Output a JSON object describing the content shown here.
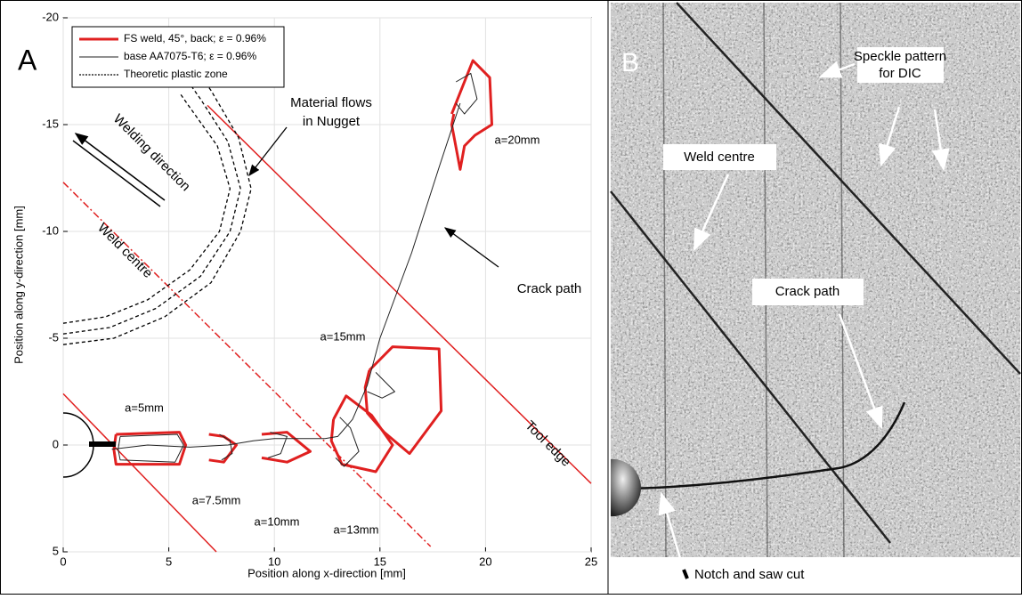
{
  "chart_data": {
    "type": "line",
    "panel_label": "A",
    "xlabel": "Position along x-direction [mm]",
    "ylabel": "Position along y-direction [mm]",
    "xlim": [
      0,
      25
    ],
    "ylim": [
      -20,
      5
    ],
    "y_inverted": true,
    "xticks": [
      0,
      5,
      10,
      15,
      20,
      25
    ],
    "yticks": [
      -20,
      -15,
      -10,
      -5,
      0,
      5
    ],
    "grid": true,
    "legend": "upper left",
    "series": [
      {
        "name": "FS weld, 45°, back; ε = 0.96%",
        "color": "#e02020",
        "width": 3,
        "x": [
          2.5,
          5.5,
          5.8,
          5.5,
          2.5,
          2.4,
          2.5,
          null,
          6.9,
          7.6,
          8.2,
          7.6,
          6.9,
          null,
          9.4,
          10.6,
          11.7,
          10.6,
          9.4,
          null,
          12.8,
          13.4,
          14.6,
          15.6,
          14.8,
          13.2,
          12.7,
          12.8,
          null,
          14.5,
          15.6,
          17.8,
          17.9,
          16.4,
          15.2,
          14.4,
          14.3,
          14.5,
          null,
          18.4,
          19.4,
          20.2,
          20.3,
          19.5,
          19.0,
          18.8,
          18.4,
          18.5
        ],
        "y": [
          -0.5,
          -0.6,
          0.0,
          0.9,
          0.9,
          0.2,
          -0.5,
          null,
          -0.5,
          -0.4,
          0.0,
          0.8,
          0.7,
          null,
          -0.5,
          -0.6,
          0.3,
          0.8,
          0.6,
          null,
          -1.2,
          -2.3,
          -1.4,
          0.0,
          1.25,
          0.9,
          -0.2,
          -1.2,
          null,
          -3.5,
          -4.6,
          -4.5,
          -1.6,
          0.4,
          -0.6,
          -1.5,
          -2.7,
          -3.5,
          null,
          -15.5,
          -18.0,
          -17.2,
          -15.0,
          -14.5,
          -14.0,
          -12.9,
          -15.0,
          -15.5
        ]
      },
      {
        "name": "base AA7075-T6; ε = 0.96%",
        "color": "#222222",
        "width": 1,
        "x": [
          2.7,
          5.4,
          5.7,
          5.3,
          2.7,
          2.6,
          2.7,
          null,
          7.4,
          7.9,
          8.0,
          7.5,
          null,
          9.8,
          10.6,
          10.3,
          9.7,
          null,
          13.1,
          13.6,
          14.0,
          13.3,
          12.9,
          null,
          14.8,
          15.7,
          15.1,
          14.4,
          null,
          18.6,
          19.3,
          19.6,
          19.0,
          18.6,
          null,
          2.3,
          4.0,
          6.0,
          7.8,
          9.0,
          10.0,
          11.0,
          12.4,
          13.0,
          13.7,
          14.4,
          15.0,
          16.5,
          17.8,
          18.8
        ],
        "y": [
          -0.4,
          -0.5,
          0.0,
          0.8,
          0.7,
          0.2,
          -0.4,
          null,
          -0.5,
          -0.2,
          0.4,
          0.7,
          null,
          -0.6,
          -0.4,
          0.4,
          0.6,
          null,
          -1.3,
          -0.8,
          0.3,
          1.0,
          0.6,
          null,
          -3.4,
          -2.5,
          -2.2,
          -2.5,
          null,
          -17.0,
          -17.4,
          -16.2,
          -15.5,
          -16.0,
          null,
          0.2,
          0.0,
          0.1,
          0.0,
          -0.2,
          -0.3,
          -0.3,
          -0.3,
          -0.4,
          -1.2,
          -2.8,
          -5.0,
          -9.0,
          -13.0,
          -16.0
        ]
      },
      {
        "name": "Theoretic plastic zone",
        "color": "#000000",
        "width": 1.3,
        "dash": "4 3",
        "x": [
          0,
          2,
          4,
          6,
          7.4,
          7.9,
          7.3,
          6,
          5.5,
          null,
          0,
          2.2,
          4.4,
          6.5,
          7.9,
          8.4,
          7.8,
          6.5,
          6,
          null,
          0,
          2.4,
          4.8,
          7.0,
          8.4,
          8.9,
          8.3,
          7.0,
          6.5
        ],
        "y": [
          -5.7,
          -6,
          -6.8,
          -8.2,
          -10,
          -12,
          -14,
          -15.8,
          -16.5,
          null,
          -5.2,
          -5.5,
          -6.4,
          -7.9,
          -10,
          -12,
          -14.2,
          -16.2,
          -16.9,
          null,
          -4.7,
          -5.0,
          -6.0,
          -7.6,
          -10,
          -12,
          -14.4,
          -16.6,
          -17.3
        ]
      }
    ],
    "reference_lines": [
      {
        "color": "#e02020",
        "x": [
          0,
          7.25
        ],
        "y": [
          -2.4,
          5
        ]
      },
      {
        "color": "#e02020",
        "x": [
          6.83,
          25
        ],
        "y": [
          -15.9,
          1.8
        ]
      },
      {
        "color": "#e02020",
        "dash": "8 3 2 3",
        "x": [
          0,
          17.4
        ],
        "y": [
          -12.3,
          4.75
        ]
      }
    ],
    "annotations": [
      "Material flows",
      "in Nugget",
      "Welding direction",
      "Weld centre",
      "Crack path",
      "Tool edge",
      "a=5mm",
      "a=7.5mm",
      "a=10mm",
      "a=13mm",
      "a=15mm",
      "a=20mm"
    ]
  },
  "panel_b": {
    "label": "B",
    "labels": [
      "Speckle pattern",
      "for DIC",
      "Weld centre",
      "Crack path",
      "Notch and saw cut"
    ]
  }
}
